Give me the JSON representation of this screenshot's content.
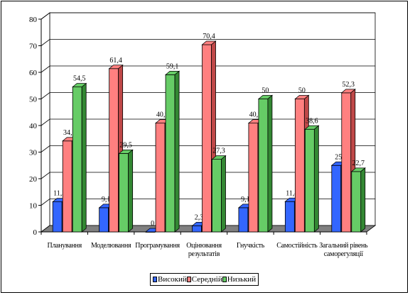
{
  "chart_data": {
    "type": "bar",
    "style": "3d-clustered",
    "categories": [
      [
        "Планування"
      ],
      [
        "Моделювання"
      ],
      [
        "Програмування"
      ],
      [
        "Оцінювання",
        "результатів"
      ],
      [
        "Гнучкість"
      ],
      [
        "Самостійність"
      ],
      [
        "Загальний рівень",
        "саморегуляції"
      ]
    ],
    "series": [
      {
        "name": "Високий",
        "values": [
          11.3,
          9.1,
          0,
          2.3,
          9.1,
          11.4,
          25
        ],
        "labels": [
          "11,3",
          "9,1",
          "0",
          "2,3",
          "9,1",
          "11,4",
          "25"
        ],
        "color": "#3366ff",
        "dark": "#1f3fb0"
      },
      {
        "name": "Середній",
        "values": [
          34.2,
          61.4,
          40.9,
          70.4,
          40.9,
          50,
          52.3
        ],
        "labels": [
          "34,2",
          "61,4",
          "40,9",
          "70,4",
          "40,9",
          "50",
          "52,3"
        ],
        "color": "#ff8080",
        "dark": "#c04848"
      },
      {
        "name": "Низький",
        "values": [
          54.5,
          29.5,
          59.1,
          27.3,
          50,
          38.6,
          22.7
        ],
        "labels": [
          "54,5",
          "29,5",
          "59,1",
          "27,3",
          "50",
          "38,6",
          "22,7"
        ],
        "color": "#66cc66",
        "dark": "#338833"
      }
    ],
    "ylim": [
      0,
      80
    ],
    "yticks": [
      0,
      10,
      20,
      30,
      40,
      50,
      60,
      70,
      80
    ],
    "grid": true,
    "legend_position": "bottom"
  }
}
